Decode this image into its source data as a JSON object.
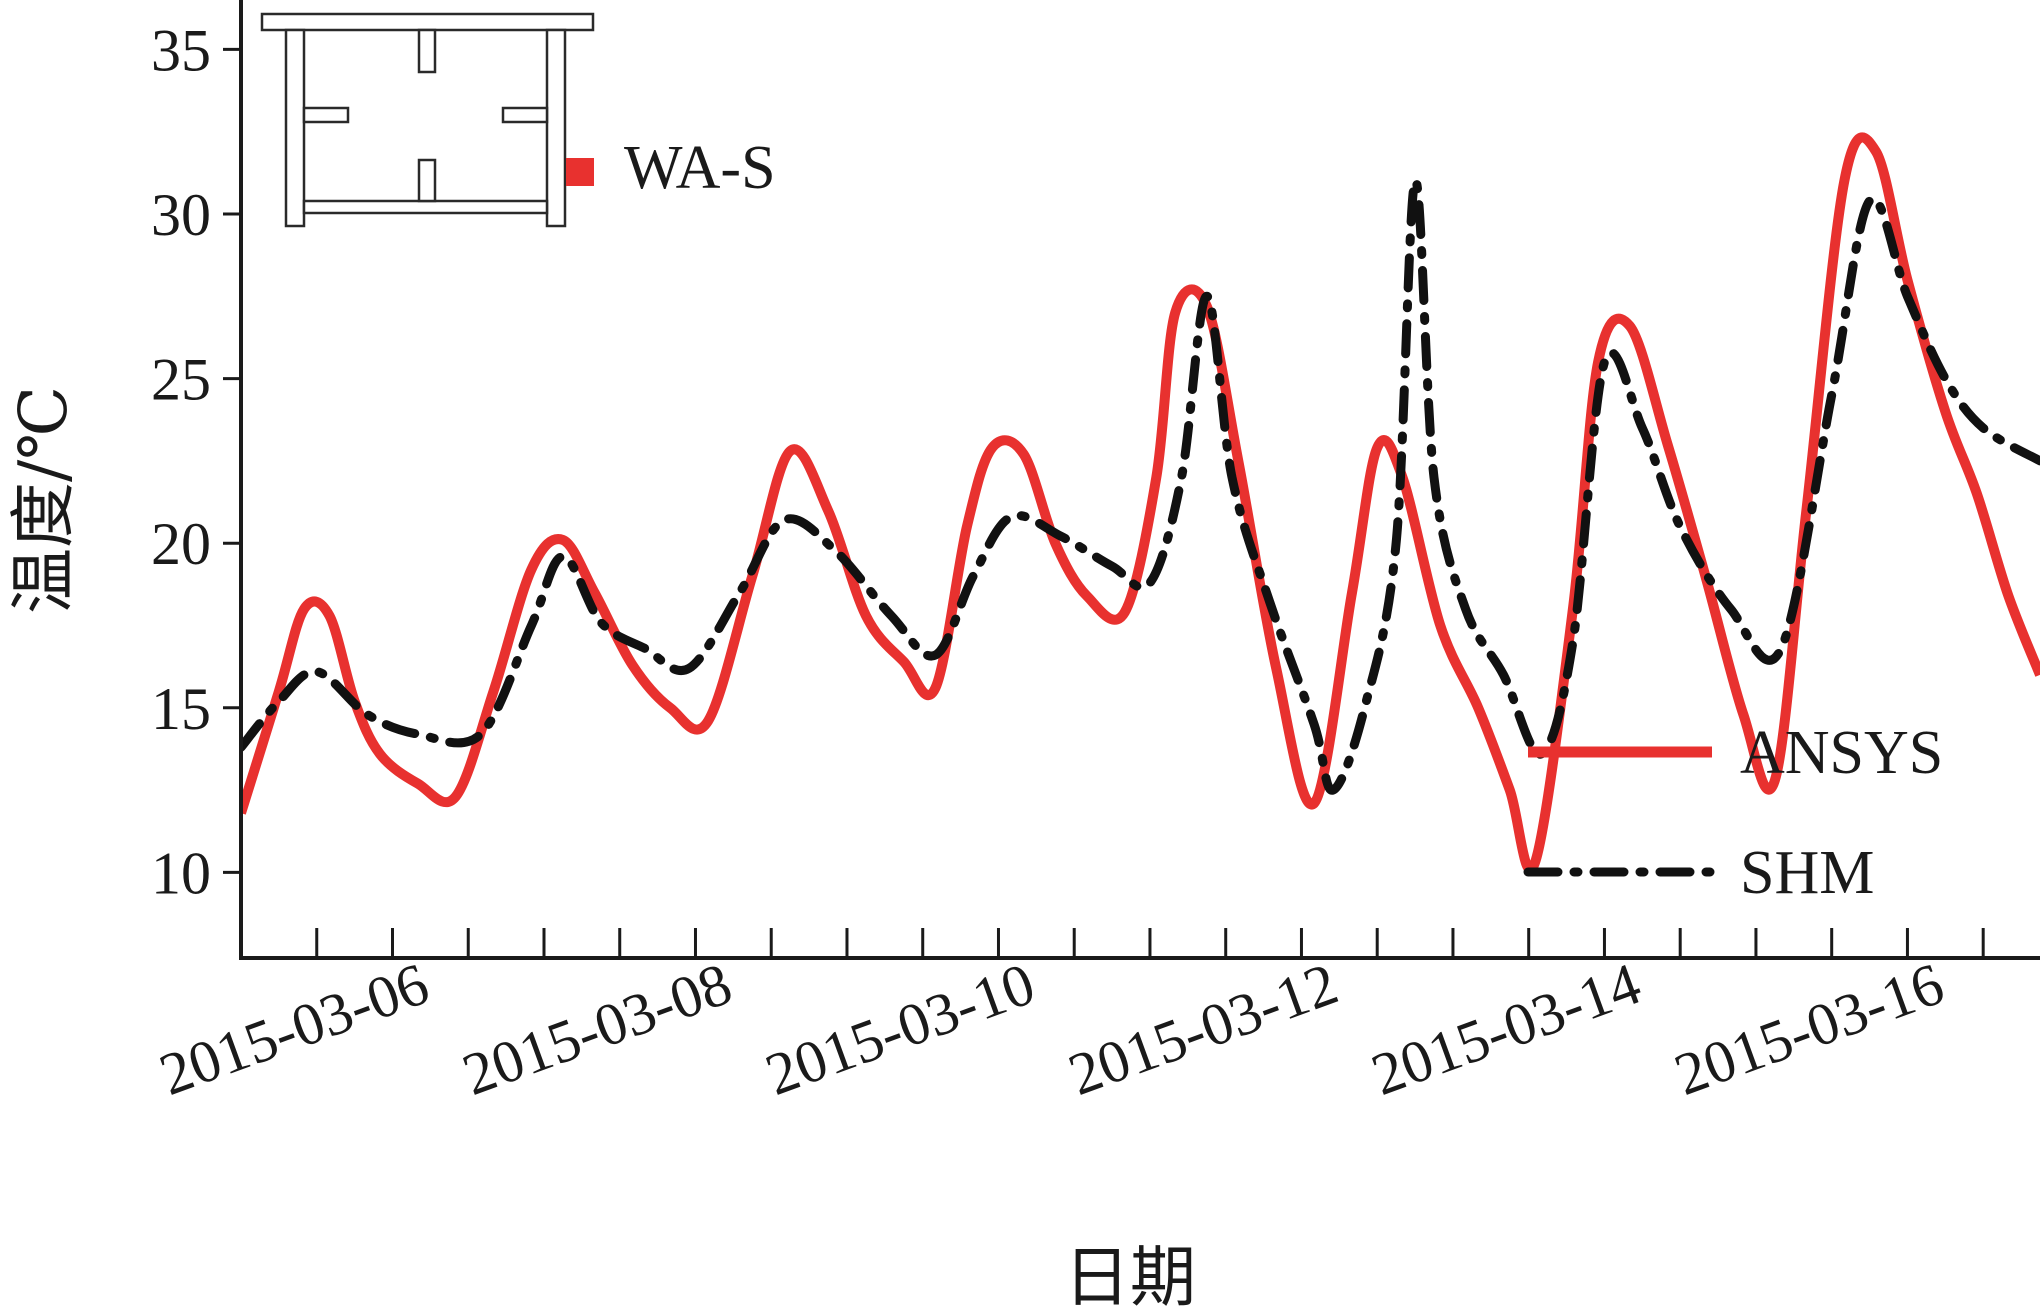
{
  "chart_data": {
    "type": "line",
    "title": "",
    "xlabel": "日期",
    "ylabel": "温度/℃",
    "xlim": [
      "2015-03-05T00:00",
      "2015-03-16T21:00"
    ],
    "ylim": [
      7.4,
      36.5
    ],
    "yticks": [
      10,
      15,
      20,
      25,
      30,
      35
    ],
    "xticks": [
      "2015-03-06",
      "2015-03-08",
      "2015-03-10",
      "2015-03-12",
      "2015-03-14",
      "2015-03-16"
    ],
    "grid": false,
    "legend": "bottom-right",
    "inset": {
      "label": "WA-S",
      "marker_color": "#e8312f"
    },
    "series": [
      {
        "name": "ANSYS",
        "color": "#e8312f",
        "style": "solid",
        "points": [
          [
            "2015-03-05T00:00",
            11.8
          ],
          [
            "2015-03-05T06:00",
            15.5
          ],
          [
            "2015-03-05T10:00",
            18.0
          ],
          [
            "2015-03-05T14:00",
            17.8
          ],
          [
            "2015-03-05T18:00",
            15.2
          ],
          [
            "2015-03-05T22:00",
            13.6
          ],
          [
            "2015-03-06T04:00",
            12.7
          ],
          [
            "2015-03-06T10:00",
            12.3
          ],
          [
            "2015-03-06T16:00",
            15.5
          ],
          [
            "2015-03-06T22:00",
            19.2
          ],
          [
            "2015-03-07T03:00",
            20.1
          ],
          [
            "2015-03-07T08:00",
            18.5
          ],
          [
            "2015-03-07T14:00",
            16.3
          ],
          [
            "2015-03-07T20:00",
            15.0
          ],
          [
            "2015-03-08T02:00",
            14.6
          ],
          [
            "2015-03-08T09:00",
            19.0
          ],
          [
            "2015-03-08T15:00",
            22.8
          ],
          [
            "2015-03-08T21:00",
            21.0
          ],
          [
            "2015-03-09T03:00",
            17.8
          ],
          [
            "2015-03-09T09:00",
            16.4
          ],
          [
            "2015-03-09T14:00",
            15.6
          ],
          [
            "2015-03-09T19:00",
            20.5
          ],
          [
            "2015-03-09T23:00",
            22.9
          ],
          [
            "2015-03-10T04:00",
            22.7
          ],
          [
            "2015-03-10T09:00",
            20.0
          ],
          [
            "2015-03-10T14:00",
            18.4
          ],
          [
            "2015-03-10T20:00",
            17.9
          ],
          [
            "2015-03-11T01:00",
            22.0
          ],
          [
            "2015-03-11T04:00",
            27.0
          ],
          [
            "2015-03-11T09:00",
            27.2
          ],
          [
            "2015-03-11T14:00",
            22.5
          ],
          [
            "2015-03-11T20:00",
            16.2
          ],
          [
            "2015-03-12T02:00",
            12.1
          ],
          [
            "2015-03-12T08:00",
            18.5
          ],
          [
            "2015-03-12T12:00",
            22.9
          ],
          [
            "2015-03-12T16:00",
            22.0
          ],
          [
            "2015-03-12T22:00",
            17.5
          ],
          [
            "2015-03-13T04:00",
            15.0
          ],
          [
            "2015-03-13T09:00",
            12.5
          ],
          [
            "2015-03-13T13:00",
            10.3
          ],
          [
            "2015-03-13T19:00",
            18.0
          ],
          [
            "2015-03-13T23:00",
            25.5
          ],
          [
            "2015-03-14T04:00",
            26.6
          ],
          [
            "2015-03-14T10:00",
            23.0
          ],
          [
            "2015-03-14T16:00",
            19.0
          ],
          [
            "2015-03-14T22:00",
            14.8
          ],
          [
            "2015-03-15T03:00",
            12.8
          ],
          [
            "2015-03-15T08:00",
            21.0
          ],
          [
            "2015-03-15T14:00",
            31.0
          ],
          [
            "2015-03-15T19:00",
            31.9
          ],
          [
            "2015-03-16T00:00",
            28.0
          ],
          [
            "2015-03-16T06:00",
            24.0
          ],
          [
            "2015-03-16T11:00",
            21.5
          ],
          [
            "2015-03-16T16:00",
            18.4
          ],
          [
            "2015-03-16T21:00",
            16.0
          ]
        ]
      },
      {
        "name": "SHM",
        "color": "#111111",
        "style": "dash-dot",
        "points": [
          [
            "2015-03-05T00:00",
            13.8
          ],
          [
            "2015-03-05T06:00",
            15.2
          ],
          [
            "2015-03-05T12:00",
            16.1
          ],
          [
            "2015-03-05T20:00",
            14.8
          ],
          [
            "2015-03-06T04:00",
            14.2
          ],
          [
            "2015-03-06T14:00",
            14.2
          ],
          [
            "2015-03-06T22:00",
            17.5
          ],
          [
            "2015-03-07T03:00",
            19.6
          ],
          [
            "2015-03-07T09:00",
            17.6
          ],
          [
            "2015-03-07T16:00",
            16.8
          ],
          [
            "2015-03-07T23:00",
            16.2
          ],
          [
            "2015-03-08T07:00",
            18.5
          ],
          [
            "2015-03-08T14:00",
            20.7
          ],
          [
            "2015-03-08T22:00",
            19.8
          ],
          [
            "2015-03-09T07:00",
            17.8
          ],
          [
            "2015-03-09T14:00",
            16.6
          ],
          [
            "2015-03-09T20:00",
            19.0
          ],
          [
            "2015-03-10T02:00",
            20.8
          ],
          [
            "2015-03-10T10:00",
            20.2
          ],
          [
            "2015-03-10T18:00",
            19.3
          ],
          [
            "2015-03-11T00:00",
            18.8
          ],
          [
            "2015-03-11T05:00",
            22.0
          ],
          [
            "2015-03-11T09:00",
            27.5
          ],
          [
            "2015-03-11T13:00",
            22.0
          ],
          [
            "2015-03-11T19:00",
            18.2
          ],
          [
            "2015-03-12T02:00",
            14.5
          ],
          [
            "2015-03-12T05:00",
            12.5
          ],
          [
            "2015-03-12T10:00",
            15.0
          ],
          [
            "2015-03-12T15:00",
            20.0
          ],
          [
            "2015-03-12T18:00",
            31.0
          ],
          [
            "2015-03-12T21:00",
            22.0
          ],
          [
            "2015-03-13T02:00",
            18.0
          ],
          [
            "2015-03-13T08:00",
            16.0
          ],
          [
            "2015-03-13T14:00",
            13.6
          ],
          [
            "2015-03-13T19:00",
            17.0
          ],
          [
            "2015-03-14T00:00",
            25.5
          ],
          [
            "2015-03-14T06:00",
            23.5
          ],
          [
            "2015-03-14T12:00",
            20.5
          ],
          [
            "2015-03-14T20:00",
            18.0
          ],
          [
            "2015-03-15T04:00",
            16.8
          ],
          [
            "2015-03-15T12:00",
            24.5
          ],
          [
            "2015-03-15T18:00",
            30.4
          ],
          [
            "2015-03-16T00:00",
            27.5
          ],
          [
            "2015-03-16T06:00",
            25.0
          ],
          [
            "2015-03-16T12:00",
            23.5
          ],
          [
            "2015-03-16T21:00",
            22.5
          ]
        ]
      }
    ]
  }
}
